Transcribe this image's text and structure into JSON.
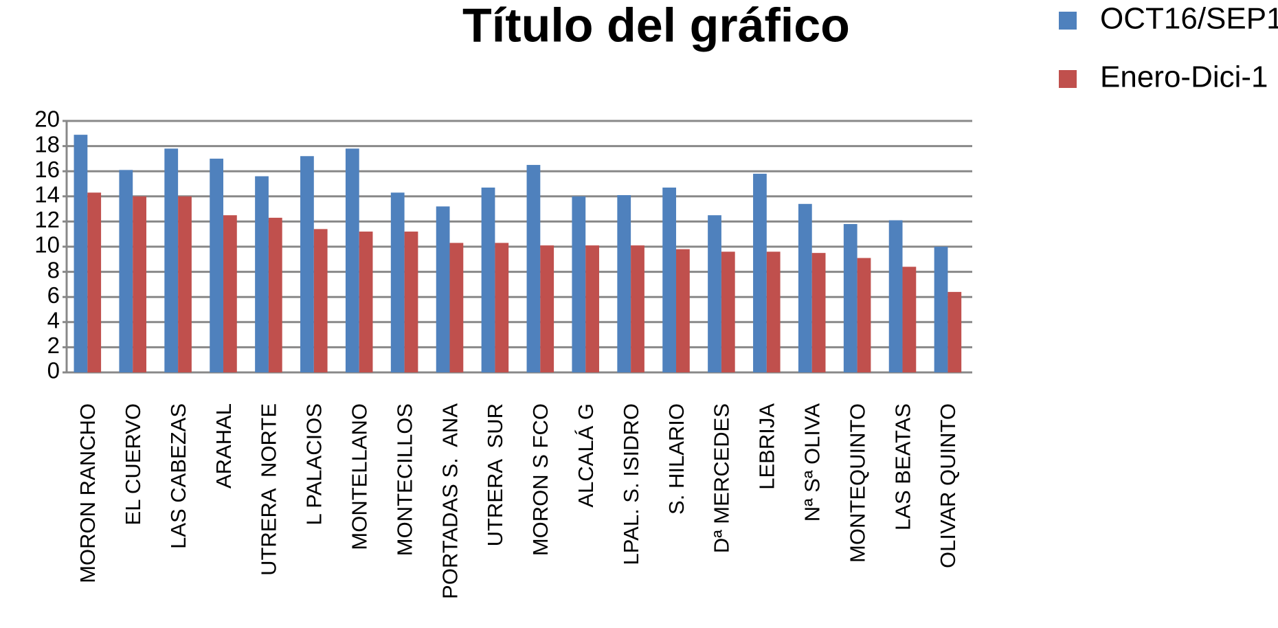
{
  "chart_data": {
    "type": "bar",
    "title": "Título del gráfico",
    "categories": [
      "MORON RANCHO",
      "EL CUERVO",
      "LAS CABEZAS",
      "ARAHAL",
      "UTRERA  NORTE",
      "L PALACIOS",
      "MONTELLANO",
      "MONTECILLOS",
      "PORTADAS S.  ANA",
      "UTRERA  SUR",
      "MORON S FCO",
      "ALCALÁ G",
      "LPAL. S. ISIDRO",
      "S. HILARIO",
      "Dª MERCEDES",
      "LEBRIJA",
      "Nª Sª OLIVA",
      "MONTEQUINTO",
      "LAS BEATAS",
      "OLIVAR QUINTO"
    ],
    "series": [
      {
        "name": "OCT16/SEP1",
        "color": "#4f81bd",
        "values": [
          18.9,
          16.1,
          17.8,
          17.0,
          15.6,
          17.2,
          17.8,
          14.3,
          13.2,
          14.7,
          16.5,
          14.0,
          14.1,
          14.7,
          12.5,
          15.8,
          13.4,
          11.8,
          12.1,
          10.0
        ]
      },
      {
        "name": "Enero-Dici-1",
        "color": "#c0504d",
        "values": [
          14.3,
          14.0,
          14.0,
          12.5,
          12.3,
          11.4,
          11.2,
          11.2,
          10.3,
          10.3,
          10.1,
          10.1,
          10.1,
          9.8,
          9.6,
          9.6,
          9.5,
          9.1,
          8.4,
          6.4
        ]
      }
    ],
    "ylim": [
      0,
      20
    ],
    "yticks": [
      0,
      2,
      4,
      6,
      8,
      10,
      12,
      14,
      16,
      18,
      20
    ],
    "grid": true,
    "legend": "top-right"
  }
}
